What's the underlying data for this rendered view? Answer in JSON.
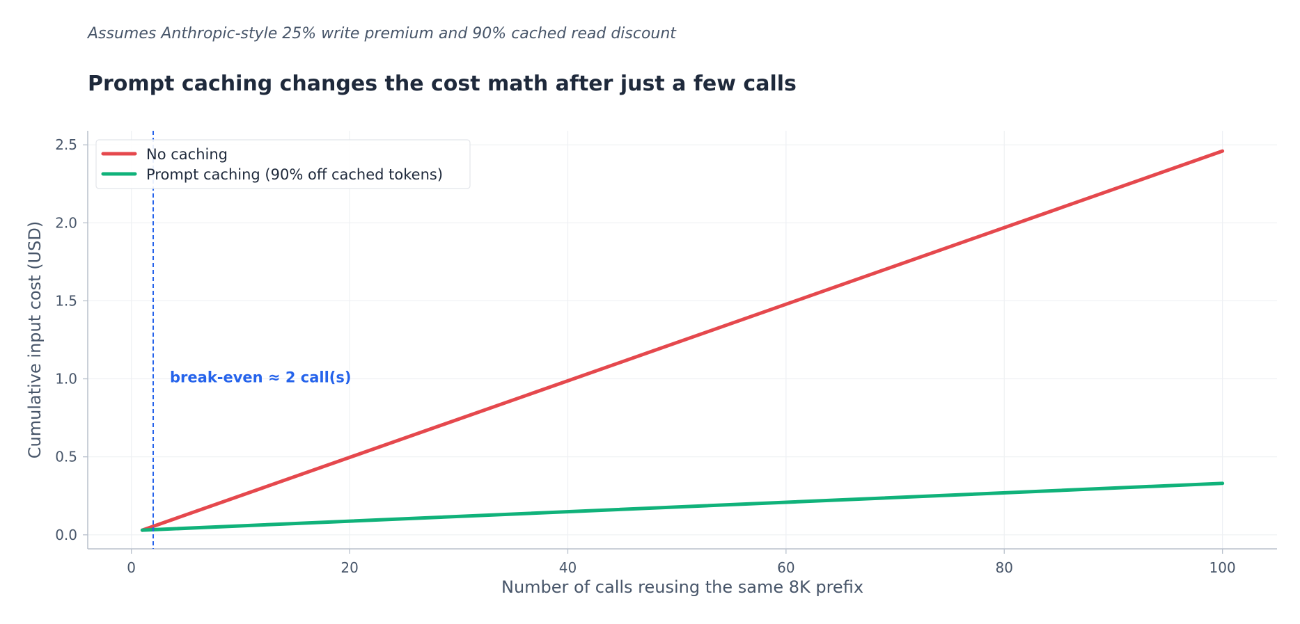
{
  "chart_data": {
    "type": "line",
    "subtitle": "Assumes Anthropic-style 25% write premium and 90% cached read discount",
    "title": "Prompt caching changes the cost math after just a few calls",
    "xlabel": "Number of calls reusing the same 8K prefix",
    "ylabel": "Cumulative input cost (USD)",
    "xlim": [
      -4,
      105
    ],
    "ylim": [
      -0.09,
      2.59
    ],
    "xticks": [
      0,
      20,
      40,
      60,
      80,
      100
    ],
    "yticks": [
      0.0,
      0.5,
      1.0,
      1.5,
      2.0,
      2.5
    ],
    "xtick_labels": [
      "0",
      "20",
      "40",
      "60",
      "80",
      "100"
    ],
    "ytick_labels": [
      "0.0",
      "0.5",
      "1.0",
      "1.5",
      "2.0",
      "2.5"
    ],
    "grid": true,
    "legend_position": "top-left",
    "series": [
      {
        "name": "No caching",
        "color": "#e5484d",
        "x": [
          1,
          100
        ],
        "y": [
          0.03,
          2.46
        ]
      },
      {
        "name": "Prompt caching (90% off cached tokens)",
        "color": "#10b27a",
        "x": [
          1,
          100
        ],
        "y": [
          0.03,
          0.33
        ]
      }
    ],
    "annotation": {
      "text": "break-even ≈ 2 call(s)",
      "x": 2,
      "text_y": 1.0,
      "color": "#2563eb"
    }
  }
}
